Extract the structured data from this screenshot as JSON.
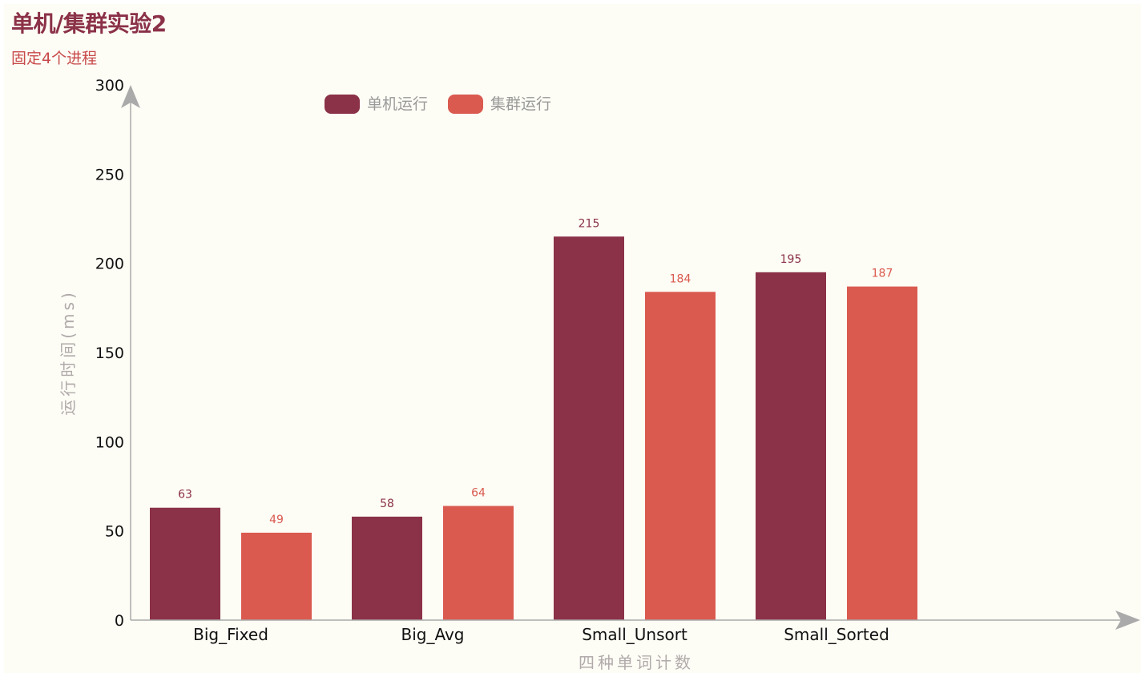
{
  "title": "单机/集群实验2",
  "subtitle": "固定4个进程",
  "colors": {
    "title": "#8b3148",
    "subtitle": "#c84a4a",
    "axis": "#aaaaaa",
    "background": "#fdfcf5"
  },
  "chart_data": {
    "type": "bar",
    "categories": [
      "Big_Fixed",
      "Big_Avg",
      "Small_Unsort",
      "Small_Sorted"
    ],
    "series": [
      {
        "name": "单机运行",
        "color": "#8b3148",
        "values": [
          63,
          58,
          215,
          195
        ]
      },
      {
        "name": "集群运行",
        "color": "#da5a4f",
        "values": [
          49,
          64,
          184,
          187
        ]
      }
    ],
    "xlabel": "四种单词计数",
    "ylabel": "运行时间(ms)",
    "ylim": [
      0,
      300
    ],
    "yticks": [
      0,
      50,
      100,
      150,
      200,
      250,
      300
    ],
    "legend_position": "top-left",
    "grid": false
  }
}
